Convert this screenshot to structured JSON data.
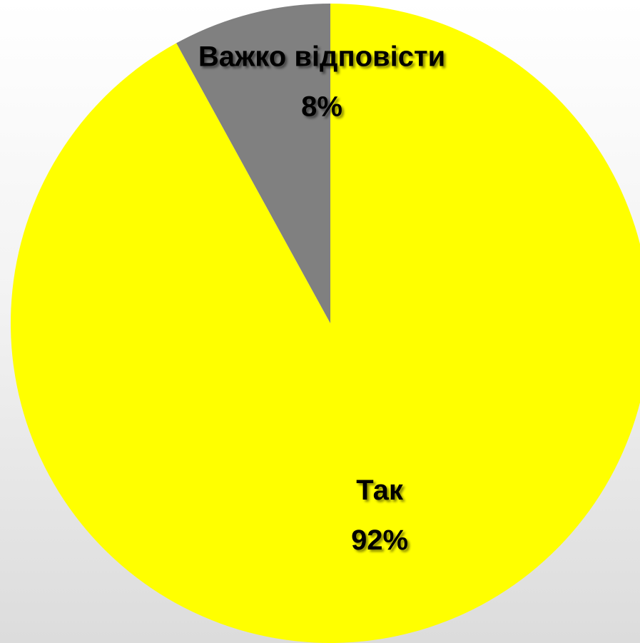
{
  "chart_data": {
    "type": "pie",
    "categories": [
      "Так",
      "Важко відповісти"
    ],
    "values": [
      92,
      8
    ],
    "value_labels": [
      "92%",
      "8%"
    ],
    "colors": [
      "#ffff00",
      "#808080"
    ],
    "title": "",
    "legend": "none",
    "start_angle": "12 o'clock",
    "direction": "clockwise"
  }
}
